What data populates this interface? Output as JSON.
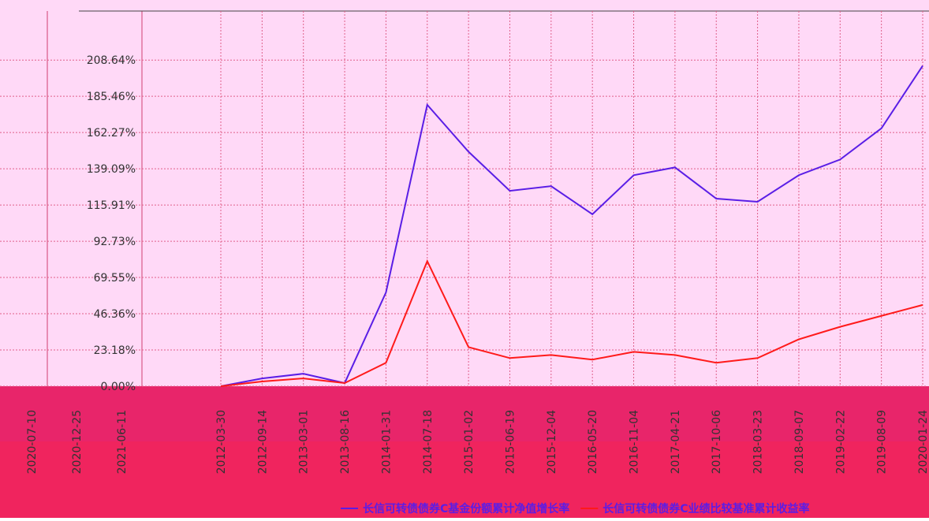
{
  "chart_data": {
    "type": "line",
    "x": [
      "2012-03-30",
      "2012-09-14",
      "2013-03-01",
      "2013-08-16",
      "2014-01-31",
      "2014-07-18",
      "2015-01-02",
      "2015-06-19",
      "2015-12-04",
      "2016-05-20",
      "2016-11-04",
      "2017-04-21",
      "2017-10-06",
      "2018-03-23",
      "2018-09-07",
      "2019-02-22",
      "2019-08-09",
      "2020-01-24"
    ],
    "left_panel_dates": [
      "2020-07-10",
      "2020-12-25",
      "2021-06-11"
    ],
    "series": [
      {
        "name": "长信可转债债券C基金份额累计净值增长率",
        "color": "#5a1ee6",
        "values": [
          0,
          5,
          8,
          2,
          60,
          180,
          150,
          125,
          128,
          110,
          135,
          140,
          120,
          118,
          135,
          145,
          165,
          205
        ]
      },
      {
        "name": "长信可转债债券C业绩比较基准累计收益率",
        "color": "#ff1a1a",
        "values": [
          0,
          3,
          5,
          2,
          15,
          80,
          25,
          18,
          20,
          17,
          22,
          20,
          15,
          18,
          30,
          38,
          45,
          52
        ]
      }
    ],
    "ylim": [
      0,
      240
    ],
    "yticks": [
      {
        "value": 0,
        "label": "0.00%"
      },
      {
        "value": 23.18,
        "label": "23.18%"
      },
      {
        "value": 46.36,
        "label": "46.36%"
      },
      {
        "value": 69.55,
        "label": "69.55%"
      },
      {
        "value": 92.73,
        "label": "92.73%"
      },
      {
        "value": 115.91,
        "label": "115.91%"
      },
      {
        "value": 139.09,
        "label": "139.09%"
      },
      {
        "value": 162.27,
        "label": "162.27%"
      },
      {
        "value": 185.46,
        "label": "185.46%"
      },
      {
        "value": 208.64,
        "label": "208.64%"
      }
    ],
    "grid": true
  }
}
